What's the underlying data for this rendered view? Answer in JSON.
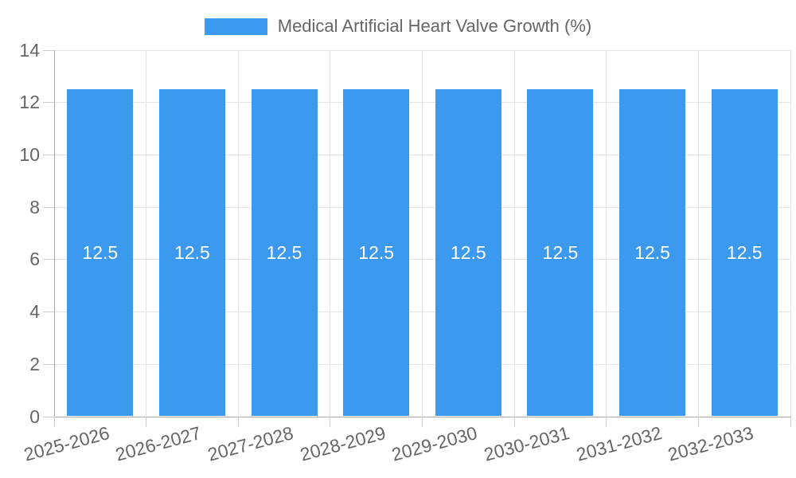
{
  "legend": {
    "label": "Medical Artificial Heart Valve Growth (%)"
  },
  "chart_data": {
    "type": "bar",
    "title": "",
    "legend_label": "Medical Artificial Heart Valve Growth (%)",
    "categories": [
      "2025-2026",
      "2026-2027",
      "2027-2028",
      "2028-2029",
      "2029-2030",
      "2030-2031",
      "2031-2032",
      "2032-2033"
    ],
    "values": [
      12.5,
      12.5,
      12.5,
      12.5,
      12.5,
      12.5,
      12.5,
      12.5
    ],
    "bar_labels": [
      "12.5",
      "12.5",
      "12.5",
      "12.5",
      "12.5",
      "12.5",
      "12.5",
      "12.5"
    ],
    "xlabel": "",
    "ylabel": "",
    "ylim": [
      0,
      14
    ],
    "yticks": [
      0,
      2,
      4,
      6,
      8,
      10,
      12,
      14
    ],
    "x_label_rotation_deg": -15,
    "grid": true,
    "legend_position": "top",
    "colors": {
      "bar": "#3B99EF",
      "bar_label": "#FFFFFF",
      "tick_label": "#666666",
      "legend_label": "#666666",
      "gridline": "#E4E4E4",
      "axis_line": "#ABABAB",
      "tick_mark": "#CCCCCC",
      "background": "#FFFFFF"
    }
  }
}
